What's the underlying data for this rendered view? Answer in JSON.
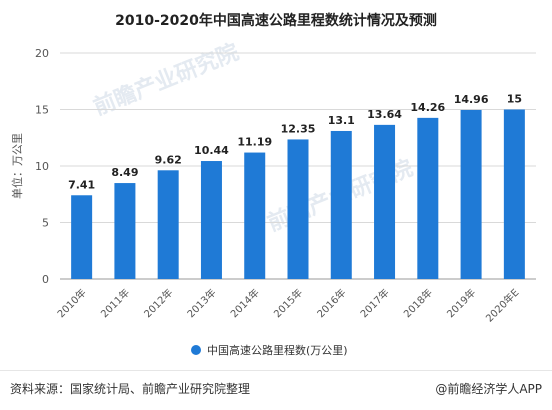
{
  "chart_data": {
    "type": "bar",
    "title": "2010-2020年中国高速公路里程数统计情况及预测",
    "ylabel": "单位：万公里",
    "xlabel": "",
    "ylim": [
      0,
      20
    ],
    "yticks": [
      0,
      5,
      10,
      15,
      20
    ],
    "grid": true,
    "legend_position": "bottom",
    "categories": [
      "2010年",
      "2011年",
      "2012年",
      "2013年",
      "2014年",
      "2015年",
      "2016年",
      "2017年",
      "2018年",
      "2019年",
      "2020年E"
    ],
    "series": [
      {
        "name": "中国高速公路里程数(万公里)",
        "color": "#1f7ad6",
        "values": [
          7.41,
          8.49,
          9.62,
          10.44,
          11.19,
          12.35,
          13.1,
          13.64,
          14.26,
          14.96,
          15
        ],
        "labels": [
          "7.41",
          "8.49",
          "9.62",
          "10.44",
          "11.19",
          "12.35",
          "13.1",
          "13.64",
          "14.26",
          "14.96",
          "15"
        ]
      }
    ]
  },
  "watermark": {
    "text": "前瞻产业研究院"
  },
  "footer": {
    "source": "资料来源：国家统计局、前瞻产业研究院整理",
    "brand": "@前瞻经济学人APP"
  }
}
